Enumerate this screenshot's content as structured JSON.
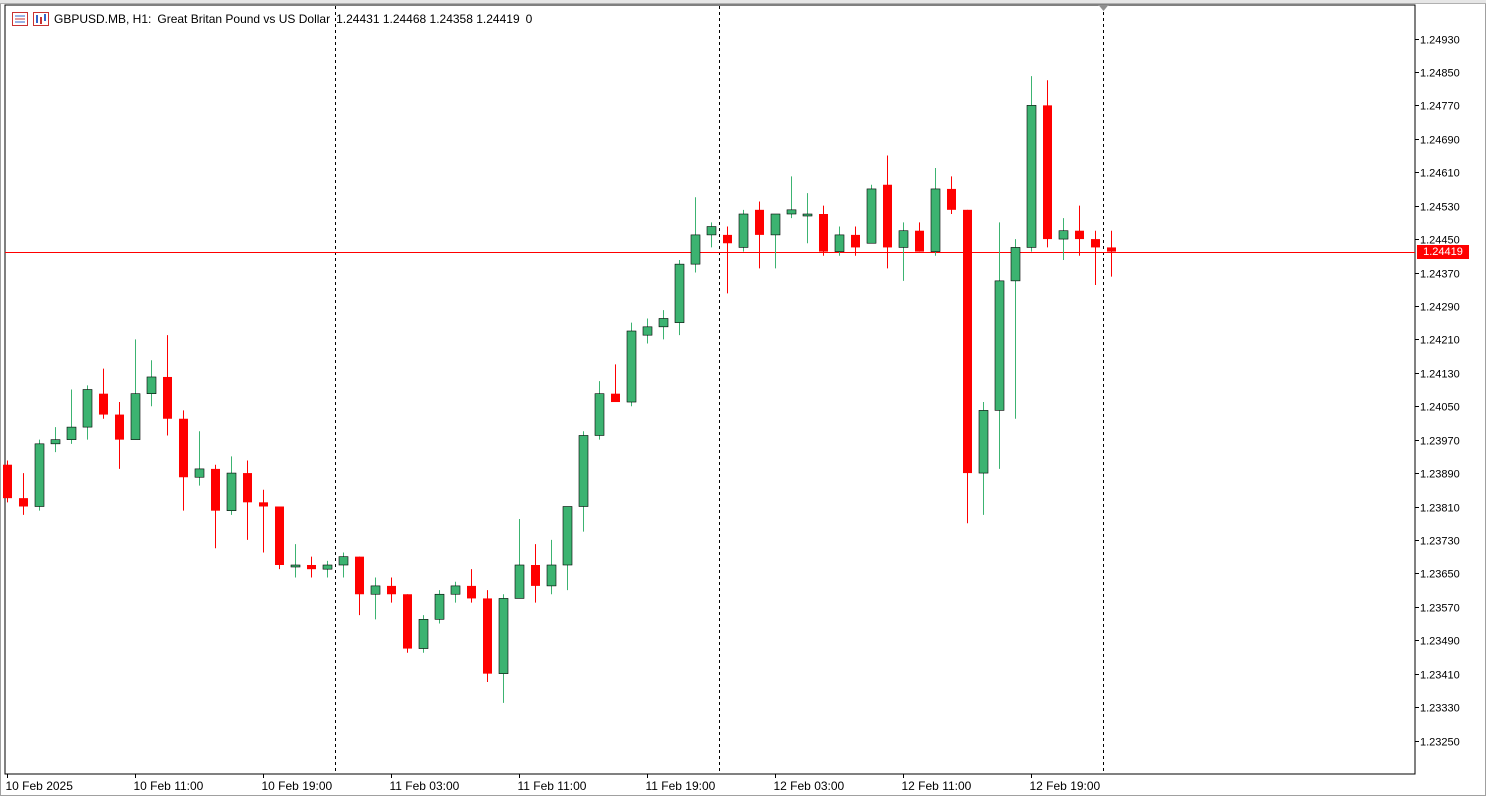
{
  "header": {
    "symbol": "GBPUSD.MB, H1:",
    "description": "Great Britan Pound vs US Dollar",
    "ohlc": "1.24431 1.24468 1.24358 1.24419",
    "volume": "0"
  },
  "icons": [
    "chart-grid-icon",
    "chart-bars-icon"
  ],
  "colors": {
    "bull": "#3cb371",
    "bear": "#ff0000",
    "current_price_line": "#ff0000",
    "axis": "#000000"
  },
  "current_price": "1.24419",
  "chart_data": {
    "type": "candlestick",
    "symbol": "GBPUSD.MB",
    "timeframe": "H1",
    "ylim": [
      1.2317,
      1.2503
    ],
    "y_ticks": [
      "1.24930",
      "1.24850",
      "1.24770",
      "1.24690",
      "1.24610",
      "1.24530",
      "1.24450",
      "1.24370",
      "1.24290",
      "1.24210",
      "1.24130",
      "1.24050",
      "1.23970",
      "1.23890",
      "1.23810",
      "1.23730",
      "1.23650",
      "1.23570",
      "1.23490",
      "1.23410",
      "1.23330",
      "1.23250"
    ],
    "x_labels": [
      "10 Feb 2025",
      "10 Feb 11:00",
      "10 Feb 19:00",
      "11 Feb 03:00",
      "11 Feb 11:00",
      "11 Feb 19:00",
      "12 Feb 03:00",
      "12 Feb 11:00",
      "12 Feb 19:00"
    ],
    "x_label_bars": [
      0,
      8,
      16,
      24,
      32,
      40,
      48,
      56,
      64
    ],
    "day_separators_after_bar": [
      20.5,
      44.5,
      68.5
    ],
    "grid": false,
    "candles": [
      [
        1.2391,
        1.2392,
        1.2382,
        1.2383
      ],
      [
        1.2383,
        1.2389,
        1.2379,
        1.2381
      ],
      [
        1.2381,
        1.2397,
        1.238,
        1.2396
      ],
      [
        1.2396,
        1.24,
        1.2394,
        1.2397
      ],
      [
        1.2397,
        1.2409,
        1.2396,
        1.24
      ],
      [
        1.24,
        1.241,
        1.2397,
        1.2409
      ],
      [
        1.2408,
        1.2414,
        1.2402,
        1.2403
      ],
      [
        1.2403,
        1.2406,
        1.239,
        1.2397
      ],
      [
        1.2397,
        1.2421,
        1.2397,
        1.2408
      ],
      [
        1.2408,
        1.2416,
        1.2405,
        1.2412
      ],
      [
        1.2412,
        1.2422,
        1.2398,
        1.2402
      ],
      [
        1.2402,
        1.2404,
        1.238,
        1.2388
      ],
      [
        1.2388,
        1.2399,
        1.2386,
        1.239
      ],
      [
        1.239,
        1.2391,
        1.2371,
        1.238
      ],
      [
        1.238,
        1.2393,
        1.2379,
        1.2389
      ],
      [
        1.2389,
        1.2392,
        1.2373,
        1.2382
      ],
      [
        1.2382,
        1.2385,
        1.237,
        1.2381
      ],
      [
        1.2381,
        1.2381,
        1.2366,
        1.2367
      ],
      [
        1.2367,
        1.2372,
        1.2364,
        1.2367
      ],
      [
        1.2367,
        1.2369,
        1.2364,
        1.2366
      ],
      [
        1.2366,
        1.2368,
        1.2364,
        1.2367
      ],
      [
        1.2367,
        1.237,
        1.2364,
        1.2369
      ],
      [
        1.2369,
        1.2369,
        1.2355,
        1.236
      ],
      [
        1.236,
        1.2364,
        1.2354,
        1.2362
      ],
      [
        1.2362,
        1.2364,
        1.2358,
        1.236
      ],
      [
        1.236,
        1.236,
        1.2346,
        1.2347
      ],
      [
        1.2347,
        1.2355,
        1.2346,
        1.2354
      ],
      [
        1.2354,
        1.2361,
        1.2353,
        1.236
      ],
      [
        1.236,
        1.2363,
        1.2358,
        1.2362
      ],
      [
        1.2362,
        1.2366,
        1.2358,
        1.2359
      ],
      [
        1.2359,
        1.2361,
        1.2339,
        1.2341
      ],
      [
        1.2341,
        1.236,
        1.2334,
        1.2359
      ],
      [
        1.2359,
        1.2378,
        1.2359,
        1.2367
      ],
      [
        1.2367,
        1.2372,
        1.2358,
        1.2362
      ],
      [
        1.2362,
        1.2373,
        1.236,
        1.2367
      ],
      [
        1.2367,
        1.2381,
        1.2361,
        1.2381
      ],
      [
        1.2381,
        1.2399,
        1.2375,
        1.2398
      ],
      [
        1.2398,
        1.2411,
        1.2397,
        1.2408
      ],
      [
        1.2408,
        1.2415,
        1.2406,
        1.2406
      ],
      [
        1.2406,
        1.2425,
        1.2405,
        1.2423
      ],
      [
        1.2422,
        1.2426,
        1.242,
        1.2424
      ],
      [
        1.2424,
        1.2428,
        1.2421,
        1.2426
      ],
      [
        1.2425,
        1.244,
        1.2422,
        1.2439
      ],
      [
        1.2439,
        1.2455,
        1.2437,
        1.2446
      ],
      [
        1.2446,
        1.2449,
        1.2443,
        1.2448
      ],
      [
        1.2446,
        1.2448,
        1.2432,
        1.2444
      ],
      [
        1.2443,
        1.2452,
        1.2442,
        1.2451
      ],
      [
        1.2452,
        1.2454,
        1.2438,
        1.2446
      ],
      [
        1.2446,
        1.2451,
        1.2438,
        1.2451
      ],
      [
        1.2451,
        1.246,
        1.245,
        1.2452
      ],
      [
        1.2451,
        1.2456,
        1.2444,
        1.2451
      ],
      [
        1.2451,
        1.2453,
        1.2441,
        1.2442
      ],
      [
        1.2442,
        1.2448,
        1.2441,
        1.2446
      ],
      [
        1.2446,
        1.2448,
        1.2441,
        1.2443
      ],
      [
        1.2444,
        1.2458,
        1.2444,
        1.2457
      ],
      [
        1.2458,
        1.2465,
        1.2438,
        1.2443
      ],
      [
        1.2443,
        1.2449,
        1.2435,
        1.2447
      ],
      [
        1.2447,
        1.2449,
        1.2442,
        1.2442
      ],
      [
        1.2442,
        1.2462,
        1.2441,
        1.2457
      ],
      [
        1.2457,
        1.246,
        1.2451,
        1.2452
      ],
      [
        1.2452,
        1.2452,
        1.2377,
        1.2389
      ],
      [
        1.2389,
        1.2406,
        1.2379,
        1.2404
      ],
      [
        1.2404,
        1.2449,
        1.239,
        1.2435
      ],
      [
        1.2435,
        1.2445,
        1.2402,
        1.2443
      ],
      [
        1.2443,
        1.2484,
        1.2442,
        1.2477
      ],
      [
        1.2477,
        1.2483,
        1.2443,
        1.2445
      ],
      [
        1.2445,
        1.245,
        1.244,
        1.2447
      ],
      [
        1.2447,
        1.2453,
        1.2441,
        1.2445
      ],
      [
        1.2445,
        1.2447,
        1.2434,
        1.2443
      ],
      [
        1.2443,
        1.2447,
        1.2436,
        1.2442
      ]
    ]
  }
}
